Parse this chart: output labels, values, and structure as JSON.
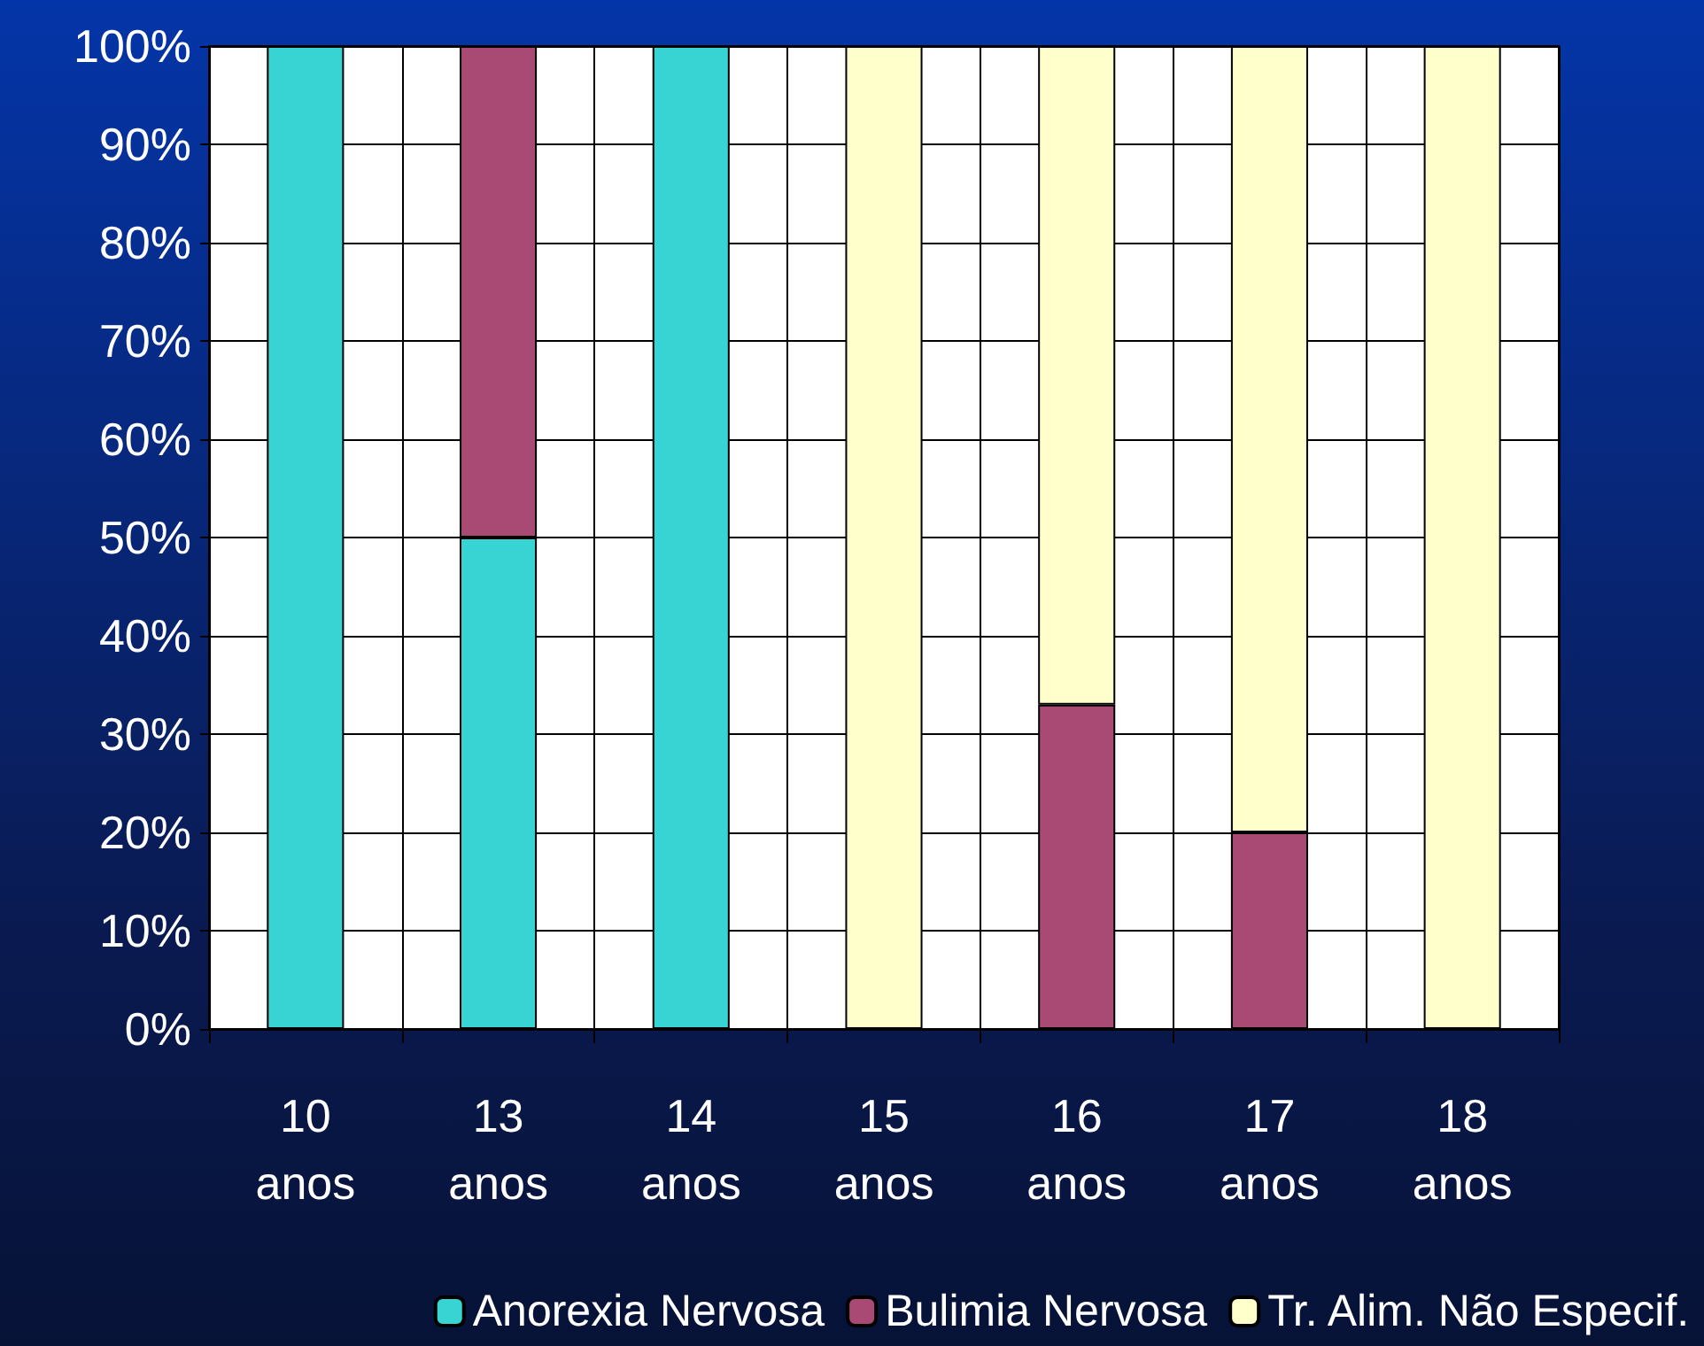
{
  "chart_data": {
    "type": "bar",
    "stacked": true,
    "categories": [
      "10\nanos",
      "13\nanos",
      "14\nanos",
      "15\nanos",
      "16\nanos",
      "17\nanos",
      "18\nanos"
    ],
    "series": [
      {
        "name": "Anorexia Nervosa",
        "color": "#38d4d4",
        "values": [
          100,
          50,
          100,
          0,
          0,
          0,
          0
        ]
      },
      {
        "name": "Bulimia Nervosa",
        "color": "#a84a74",
        "values": [
          0,
          50,
          0,
          0,
          33,
          20,
          0
        ]
      },
      {
        "name": "Tr. Alim. Não Especif.",
        "color": "#ffffcc",
        "values": [
          0,
          0,
          0,
          100,
          67,
          80,
          100
        ]
      }
    ],
    "ylim": [
      0,
      100
    ],
    "yticks": [
      {
        "value": 0,
        "label": "0%"
      },
      {
        "value": 10,
        "label": "10%"
      },
      {
        "value": 20,
        "label": "20%"
      },
      {
        "value": 30,
        "label": "30%"
      },
      {
        "value": 40,
        "label": "40%"
      },
      {
        "value": 50,
        "label": "50%"
      },
      {
        "value": 60,
        "label": "60%"
      },
      {
        "value": 70,
        "label": "70%"
      },
      {
        "value": 80,
        "label": "80%"
      },
      {
        "value": 90,
        "label": "90%"
      },
      {
        "value": 100,
        "label": "100%"
      }
    ],
    "grid": true,
    "legend": "bottom"
  }
}
